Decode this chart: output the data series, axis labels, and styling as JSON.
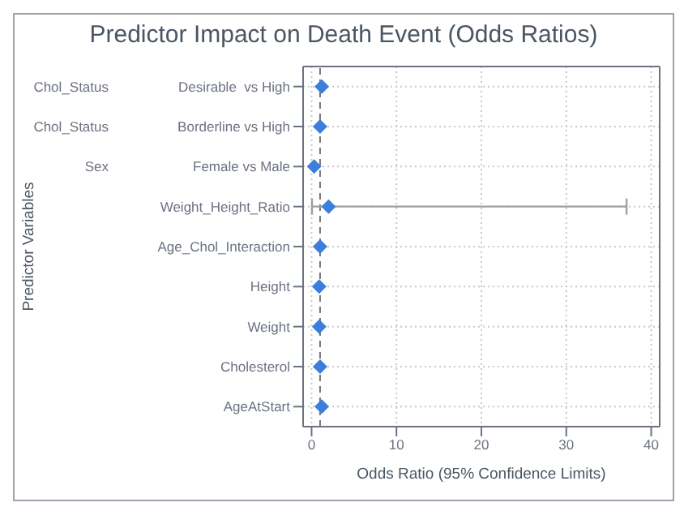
{
  "chart_data": {
    "type": "scatter",
    "orientation": "horizontal",
    "title": "Predictor Impact on Death Event (Odds Ratios)",
    "xlabel": "Odds Ratio (95% Confidence Limits)",
    "categories": [
      "Desirable  vs High",
      "Borderline vs High",
      "Female vs Male",
      "Weight_Height_Ratio",
      "Age_Chol_Interaction",
      "Height",
      "Weight",
      "Cholesterol",
      "AgeAtStart"
    ],
    "color": "#3a7fdc",
    "values": [
      1.2,
      1.0,
      0.3,
      2.0,
      1.0,
      0.9,
      0.9,
      1.0,
      1.2
    ],
    "errors": [
      null,
      null,
      null,
      [
        0.05,
        37.1
      ],
      null,
      null,
      null,
      null,
      null
    ],
    "annotations": [
      "Predictor Variables",
      "Chol_Status",
      "Chol_Status",
      "Sex"
    ],
    "ref_lines": [
      {
        "axis": "x",
        "value": 1,
        "line_style": "dashed"
      }
    ],
    "xlim": [
      -1,
      41
    ],
    "xticks": [
      0,
      10,
      20,
      30,
      40
    ],
    "grid": true,
    "marker": "diamond"
  }
}
